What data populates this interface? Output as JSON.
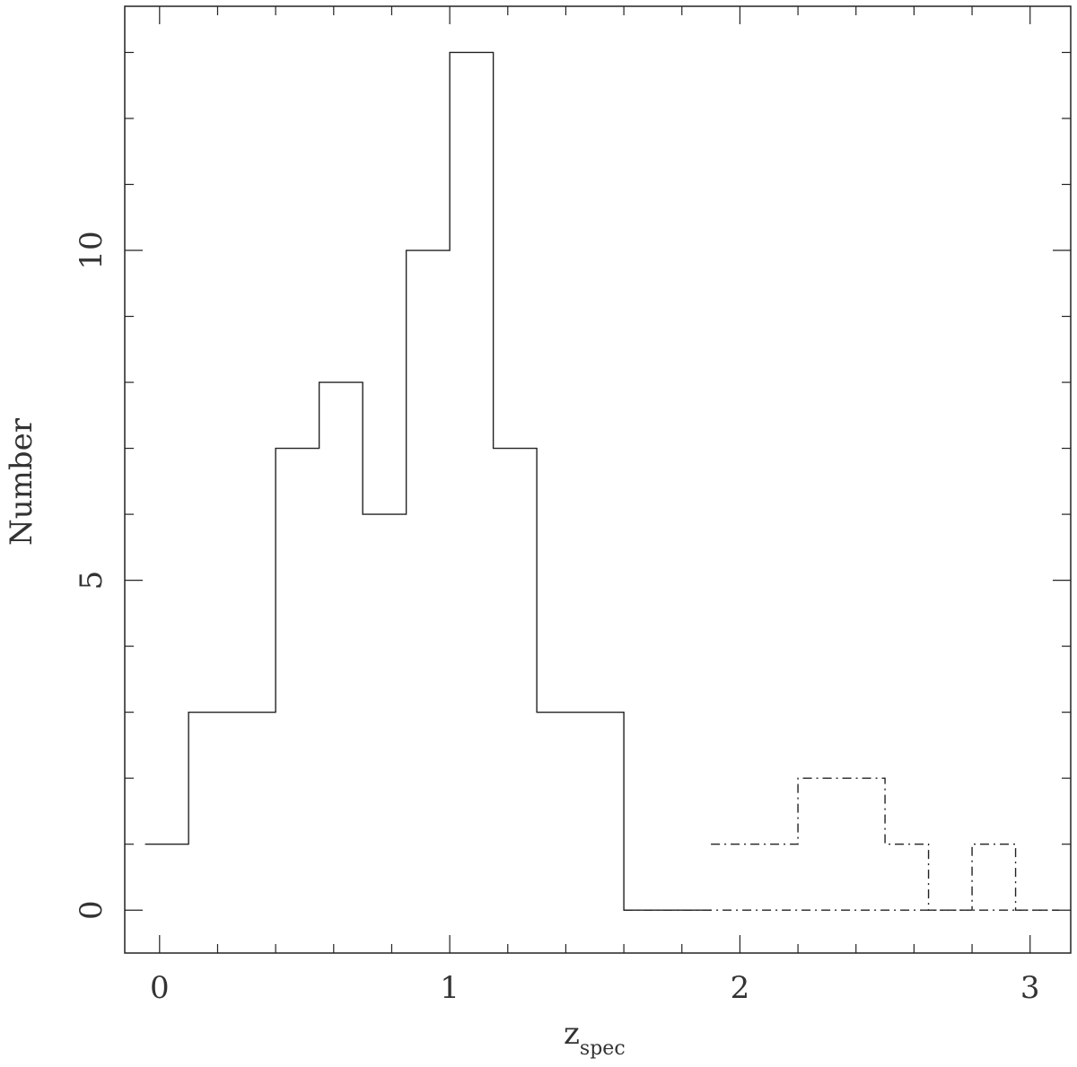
{
  "chart_data": {
    "type": "histogram",
    "xlim": [
      -0.12,
      3.14
    ],
    "ylim": [
      -0.65,
      13.7
    ],
    "x_ticks": {
      "major": [
        0,
        1,
        2,
        3
      ],
      "major_labels": [
        "0",
        "1",
        "2",
        "3"
      ],
      "minor_step": 0.2
    },
    "y_ticks": {
      "major": [
        0,
        5,
        10
      ],
      "major_labels": [
        "0",
        "5",
        "10"
      ],
      "minor_step": 1
    },
    "xlabel": {
      "main": "z",
      "sub": "spec"
    },
    "ylabel": "Number",
    "grid": false,
    "series": [
      {
        "style": "solid",
        "bin_edges": [
          -0.05,
          0.1,
          0.25,
          0.4,
          0.55,
          0.7,
          0.85,
          1.0,
          1.15,
          1.3,
          1.45,
          1.6,
          1.75,
          1.9
        ],
        "counts": [
          1,
          3,
          3,
          7,
          8,
          6,
          10,
          13,
          7,
          3,
          3,
          0,
          0
        ]
      },
      {
        "style": "dash-dot",
        "bin_edges": [
          1.9,
          2.05,
          2.2,
          2.35,
          2.5,
          2.65,
          2.8,
          2.95,
          3.1
        ],
        "counts": [
          1,
          1,
          2,
          2,
          1,
          0,
          1,
          0
        ]
      },
      {
        "style": "dash-dot",
        "bin_edges": [
          1.6,
          1.75,
          1.9,
          2.05,
          2.2,
          2.35,
          2.5,
          2.65,
          2.8,
          2.95,
          3.1
        ],
        "counts": [
          0,
          0,
          0,
          0,
          0,
          0,
          0,
          0,
          0,
          0
        ]
      }
    ]
  }
}
